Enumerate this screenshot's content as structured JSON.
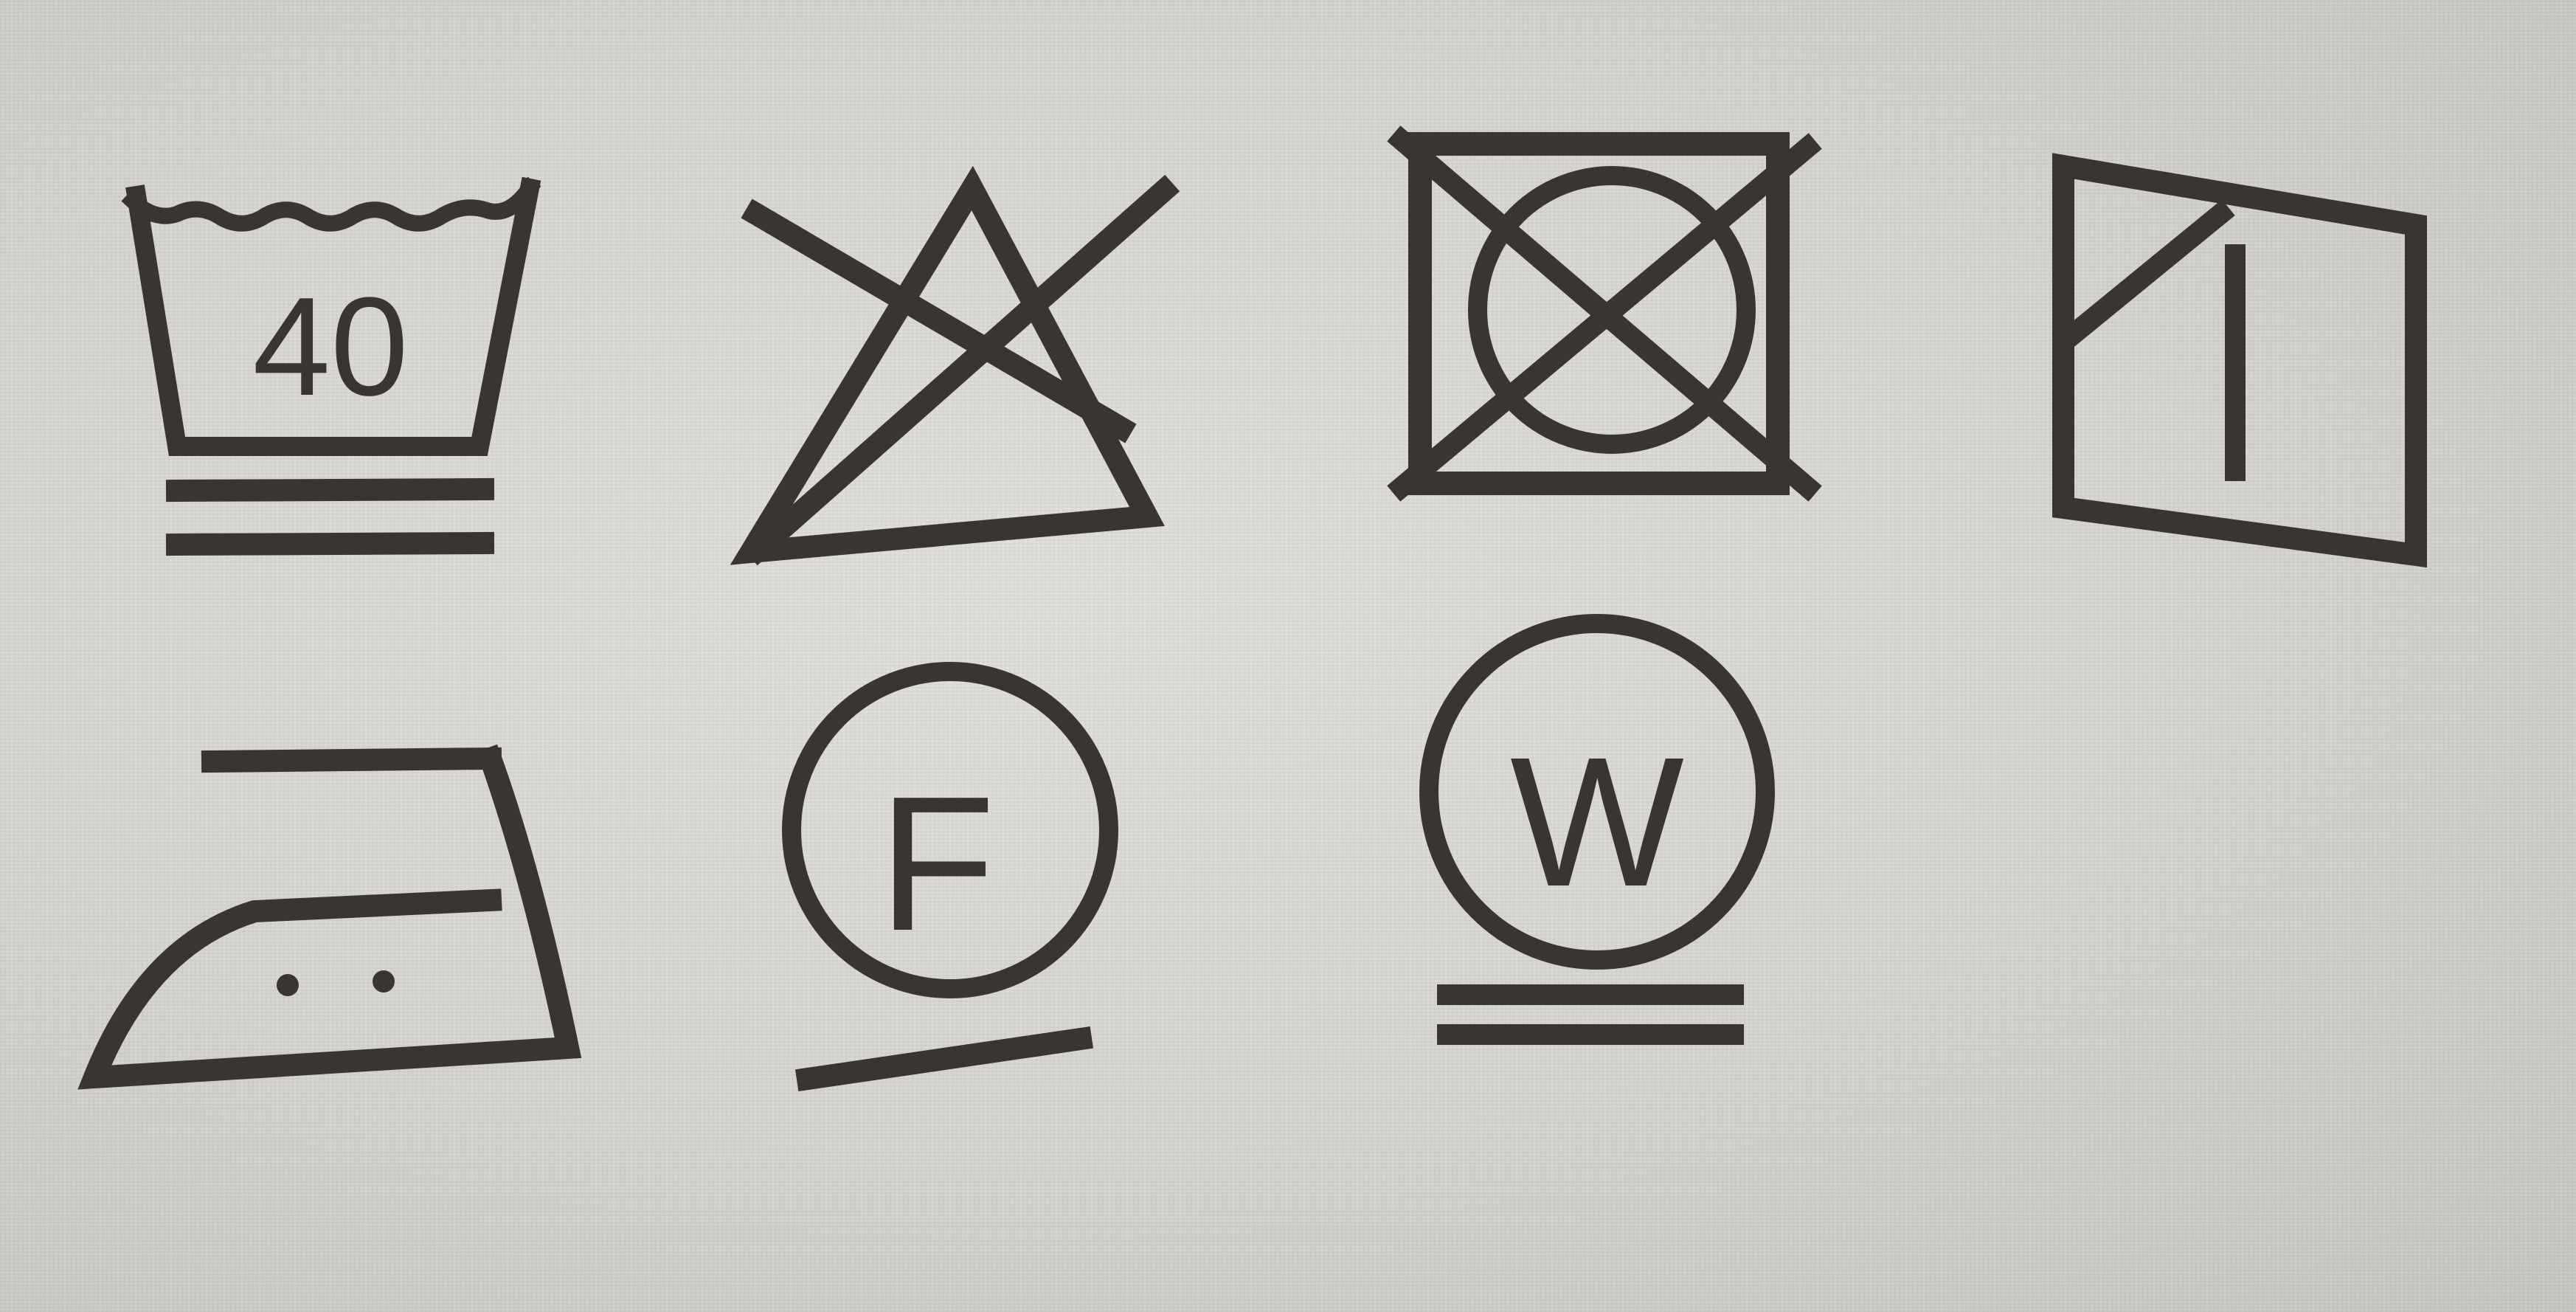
{
  "care_label": {
    "wash": {
      "temperature_text": "40",
      "icon": "washtub-40-very-mild-icon"
    },
    "bleach": {
      "icon": "do-not-bleach-icon"
    },
    "tumble_dry": {
      "icon": "do-not-tumble-dry-icon"
    },
    "natural_dry": {
      "icon": "drip-dry-shade-icon"
    },
    "iron": {
      "icon": "iron-two-dots-icon"
    },
    "dry_clean": {
      "letter": "F",
      "icon": "professional-dry-clean-f-icon"
    },
    "wet_clean": {
      "letter": "W",
      "icon": "professional-wet-clean-w-icon"
    }
  },
  "colors": {
    "ink": "#3a3532",
    "fabric": "#d8d6d2"
  }
}
